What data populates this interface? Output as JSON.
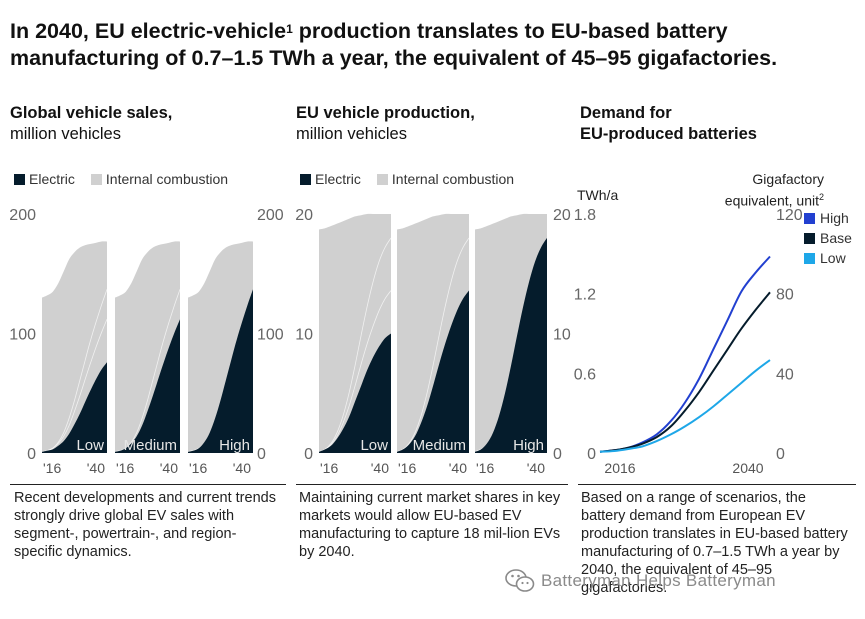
{
  "title": {
    "pre": "In 2040, EU electric-vehicle",
    "sup": "1",
    "post": " production translates to EU-based battery manufacturing of 0.7–1.5 TWh a year, the equivalent of 45–95 gigafactories."
  },
  "colors": {
    "electric": "#051c2c",
    "ice": "#d0d0d0",
    "high": "#2240d0",
    "base": "#051c2c",
    "low": "#1ea7e8"
  },
  "panels": {
    "sales": {
      "title_bold": "Global vehicle sales,",
      "title_rest": "million vehicles",
      "legend": [
        "Electric",
        "Internal combustion"
      ],
      "footnote": "Recent developments and current trends strongly drive global EV sales with segment-, powertrain-, and region-specific dynamics."
    },
    "production": {
      "title_bold": "EU vehicle production,",
      "title_rest": "million vehicles",
      "legend": [
        "Electric",
        "Internal combustion"
      ],
      "footnote": "Maintaining current market shares in key markets would allow EU-based EV manufacturing to capture 18 mil-lion EVs by 2040."
    },
    "demand": {
      "title_line1": "Demand for",
      "title_line2": "EU-produced batteries",
      "left_unit": "TWh/a",
      "right_unit_line1": "Gigafactory",
      "right_unit_line2": "equivalent, unit",
      "right_unit_sup": "2",
      "footnote": "Based on a range of scenarios, the battery demand from European EV production translates in EU-based battery manufacturing of 0.7–1.5 TWh a year by 2040, the equivalent of 45–95 gigafactories."
    }
  },
  "watermark": "Batteryman Helps Batteryman",
  "chart_data": [
    {
      "id": "sales",
      "type": "area",
      "stacked": true,
      "title": "Global vehicle sales, million vehicles",
      "ylim": [
        0,
        200
      ],
      "yticks": [
        0,
        100,
        200
      ],
      "ytick_labels": [
        "0",
        "100",
        "200"
      ],
      "xlim": [
        2016,
        2040
      ],
      "xtick_labels": [
        "'16",
        "'40"
      ],
      "x": [
        2016,
        2018,
        2020,
        2022,
        2024,
        2026,
        2028,
        2030,
        2032,
        2034,
        2036,
        2038,
        2040
      ],
      "total": [
        130,
        132,
        135,
        142,
        152,
        162,
        168,
        172,
        174,
        175,
        176,
        177,
        177
      ],
      "scenarios": [
        {
          "name": "Low",
          "electric": [
            1,
            2,
            3,
            6,
            10,
            16,
            24,
            33,
            43,
            53,
            62,
            70,
            76
          ]
        },
        {
          "name": "Medium",
          "electric": [
            1,
            2,
            4,
            8,
            14,
            23,
            35,
            48,
            62,
            76,
            89,
            101,
            112
          ]
        },
        {
          "name": "High",
          "electric": [
            1,
            2,
            4,
            9,
            17,
            29,
            44,
            61,
            78,
            95,
            110,
            124,
            137
          ]
        }
      ]
    },
    {
      "id": "production",
      "type": "area",
      "stacked": true,
      "title": "EU vehicle production, million vehicles",
      "ylim": [
        0,
        20
      ],
      "yticks": [
        0,
        10,
        20
      ],
      "ytick_labels": [
        "0",
        "10",
        "20"
      ],
      "xlim": [
        2016,
        2040
      ],
      "xtick_labels": [
        "'16",
        "'40"
      ],
      "x": [
        2016,
        2018,
        2020,
        2022,
        2024,
        2026,
        2028,
        2030,
        2032,
        2034,
        2036,
        2038,
        2040
      ],
      "total": [
        18.7,
        18.8,
        19.0,
        19.2,
        19.4,
        19.6,
        19.8,
        19.9,
        20.0,
        20.0,
        20.0,
        20.0,
        20.0
      ],
      "scenarios": [
        {
          "name": "Low",
          "electric": [
            0.1,
            0.3,
            0.6,
            1.2,
            2.0,
            3.0,
            4.3,
            5.6,
            6.9,
            8.0,
            8.9,
            9.6,
            10.0
          ]
        },
        {
          "name": "Medium",
          "electric": [
            0.1,
            0.3,
            0.7,
            1.4,
            2.5,
            3.9,
            5.6,
            7.4,
            9.1,
            10.6,
            11.9,
            12.9,
            13.6
          ]
        },
        {
          "name": "High",
          "electric": [
            0.1,
            0.3,
            0.8,
            1.7,
            3.1,
            5.0,
            7.3,
            9.8,
            12.2,
            14.3,
            16.0,
            17.2,
            18.0
          ]
        }
      ]
    },
    {
      "id": "demand",
      "type": "line",
      "title": "Demand for EU-produced batteries",
      "ylabel": "TWh/a",
      "ylabel_right": "Gigafactory equivalent, unit",
      "ylim": [
        0,
        1.8
      ],
      "yticks": [
        0,
        0.6,
        1.2,
        1.8
      ],
      "ytick_labels": [
        "0",
        "0.6",
        "1.2",
        "1.8"
      ],
      "ylim_right": [
        0,
        120
      ],
      "yticks_right": [
        0,
        40,
        80,
        120
      ],
      "ytick_labels_right": [
        "0",
        "40",
        "80",
        "120"
      ],
      "xlim": [
        2016,
        2040
      ],
      "xtick_labels": [
        "2016",
        "2040"
      ],
      "x": [
        2016,
        2018,
        2020,
        2022,
        2024,
        2026,
        2028,
        2030,
        2032,
        2034,
        2036,
        2038,
        2040
      ],
      "legend": [
        "High",
        "Base",
        "Low"
      ],
      "series": [
        {
          "name": "High",
          "values": [
            0.01,
            0.02,
            0.04,
            0.08,
            0.14,
            0.24,
            0.38,
            0.56,
            0.78,
            1.0,
            1.22,
            1.36,
            1.48
          ]
        },
        {
          "name": "Base",
          "values": [
            0.01,
            0.02,
            0.04,
            0.07,
            0.12,
            0.2,
            0.32,
            0.46,
            0.62,
            0.78,
            0.94,
            1.08,
            1.21
          ]
        },
        {
          "name": "Low",
          "values": [
            0.01,
            0.015,
            0.03,
            0.05,
            0.09,
            0.14,
            0.2,
            0.27,
            0.35,
            0.44,
            0.53,
            0.62,
            0.7
          ]
        }
      ]
    }
  ]
}
